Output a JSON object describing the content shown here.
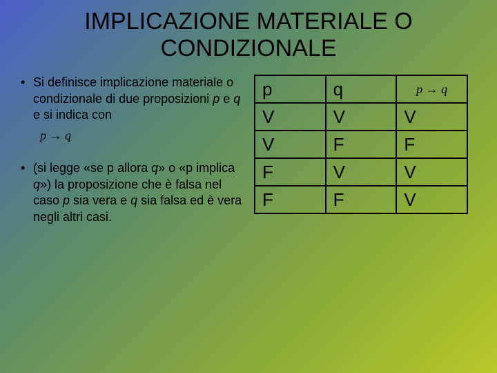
{
  "title": "IMPLICAZIONE MATERIALE O CONDIZIONALE",
  "bullets": [
    {
      "text_before": "Si definisce implicazione materiale o condizionale di due proposizioni ",
      "p": "p",
      "mid1": " e ",
      "q": "q",
      "after": " e si indica con"
    },
    {
      "text_before": "(si legge «se p allora ",
      "q1": "q",
      "mid1": "» o «p implica ",
      "q2": "q",
      "mid2": "») la proposizione che è falsa nel caso ",
      "p": "p",
      "mid3": " sia vera e ",
      "q3": "q",
      "after": " sia falsa ed è vera negli altri casi."
    }
  ],
  "formula": "p → q",
  "table": {
    "headers": [
      "p",
      "q",
      "p → q"
    ],
    "rows": [
      [
        "V",
        "V",
        "V"
      ],
      [
        "V",
        "F",
        "F"
      ],
      [
        "F",
        "V",
        "V"
      ],
      [
        "F",
        "F",
        "V"
      ]
    ]
  },
  "colors": {
    "text": "#000000",
    "border": "#000000"
  }
}
